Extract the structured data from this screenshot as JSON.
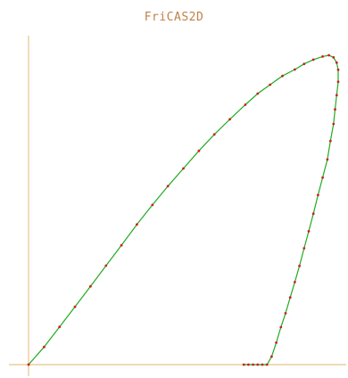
{
  "chart_data": {
    "type": "line",
    "title": "FriCAS2D",
    "xlabel": "",
    "ylabel": "",
    "grid": false,
    "legend": "none",
    "colors": {
      "curve": "#22aa22",
      "points": "#cc2020",
      "axes": "#e8c48c",
      "title": "#c08048"
    },
    "series": [
      {
        "x": [
          0.0,
          0.05,
          0.1,
          0.15,
          0.2,
          0.25,
          0.3,
          0.35,
          0.4,
          0.45,
          0.5,
          0.55,
          0.6,
          0.65,
          0.7,
          0.74,
          0.78,
          0.82,
          0.86,
          0.89,
          0.92,
          0.95,
          0.97,
          0.985,
          0.995,
          1.0,
          1.0,
          0.995,
          0.99,
          0.985,
          0.975,
          0.965,
          0.95,
          0.935,
          0.92,
          0.905,
          0.89,
          0.875,
          0.86,
          0.845,
          0.83,
          0.815,
          0.8,
          0.785,
          0.77,
          0.755,
          0.74,
          0.725,
          0.71,
          0.695
        ],
        "y": [
          0.0,
          0.057,
          0.122,
          0.187,
          0.253,
          0.32,
          0.386,
          0.453,
          0.516,
          0.577,
          0.634,
          0.691,
          0.744,
          0.793,
          0.84,
          0.876,
          0.905,
          0.933,
          0.954,
          0.972,
          0.986,
          0.996,
          1.0,
          0.993,
          0.976,
          0.953,
          0.914,
          0.871,
          0.825,
          0.778,
          0.723,
          0.663,
          0.605,
          0.548,
          0.488,
          0.431,
          0.376,
          0.319,
          0.267,
          0.217,
          0.166,
          0.121,
          0.071,
          0.026,
          0.0,
          0.0,
          0.0,
          0.0,
          0.0,
          0.0
        ]
      }
    ]
  }
}
